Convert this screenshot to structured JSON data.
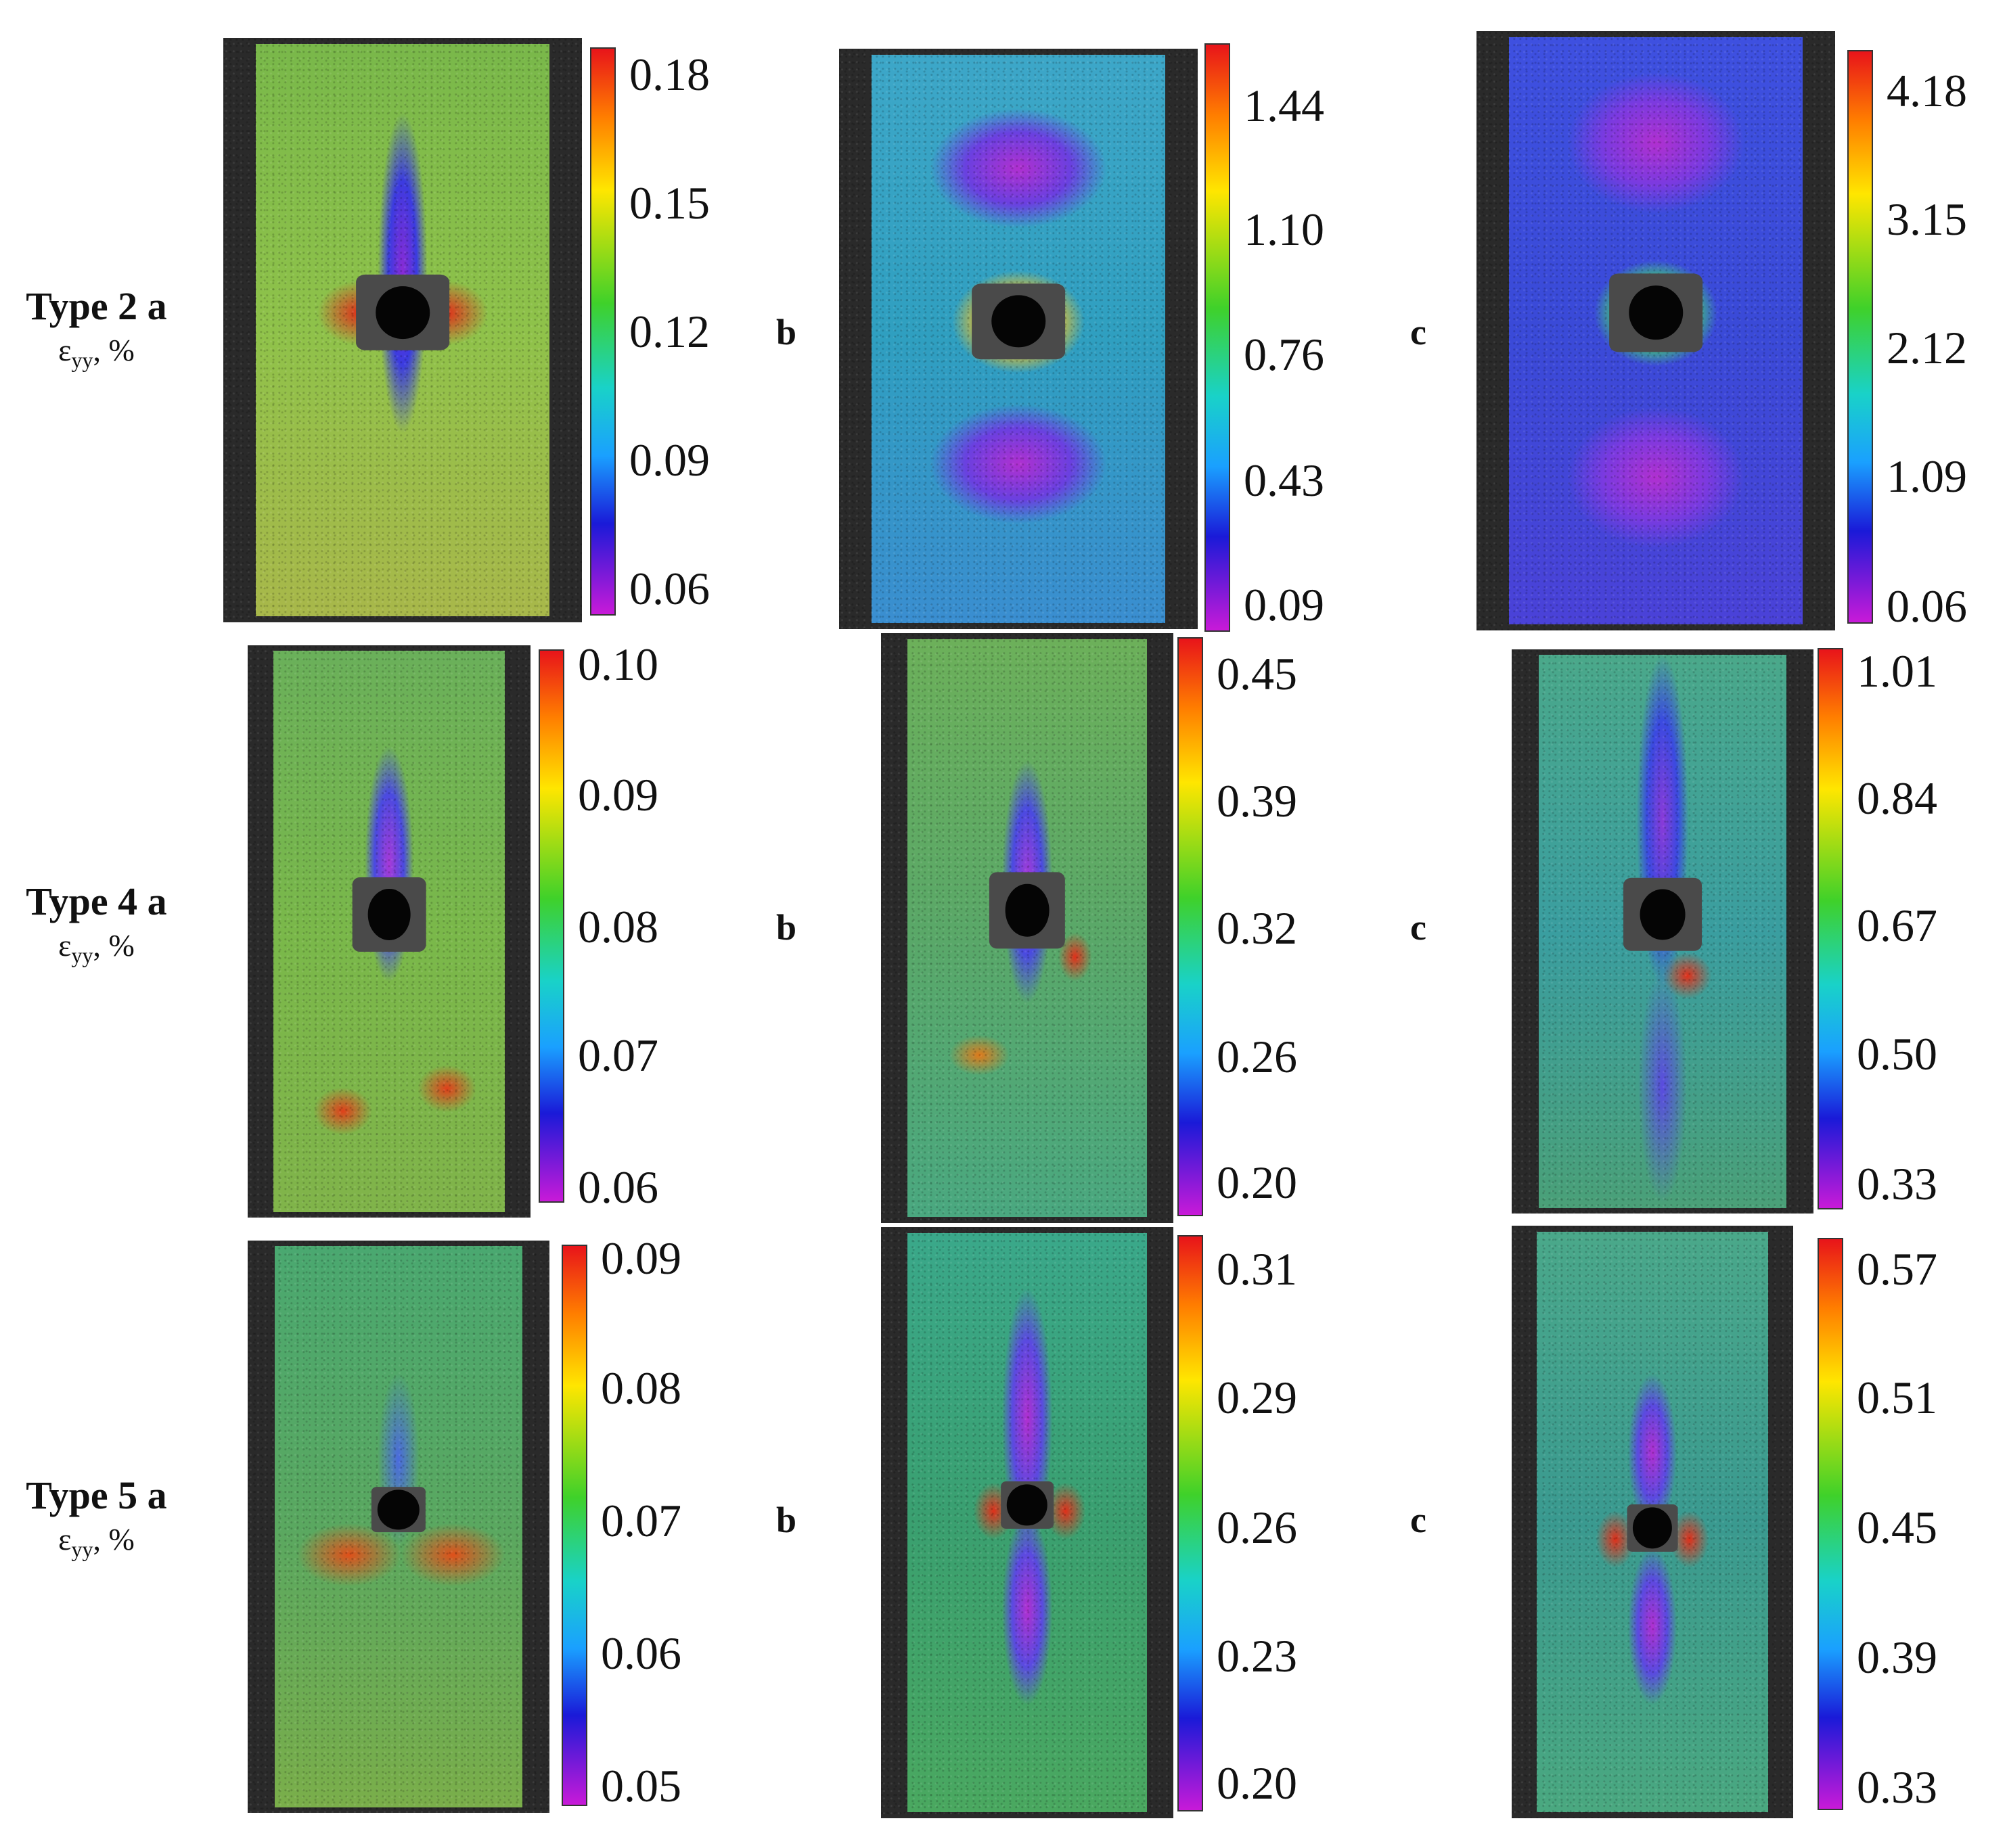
{
  "rows": [
    {
      "title": "Type 2 a",
      "quantity_symbol": "ε",
      "quantity_subscript": "yy",
      "quantity_unit": ", %",
      "panels": [
        {
          "letter": "",
          "scale": [
            "0.18",
            "0.15",
            "0.12",
            "0.09",
            "0.06"
          ],
          "background": "radial-gradient(ellipse 12% 40% at 50% 40%, #8a2bd6 0%, #3b3be0 40%, transparent 70%), radial-gradient(ellipse 20% 8% at 35% 47%, #e0301a 0%, transparent 70%), radial-gradient(ellipse 20% 8% at 65% 47%, #e0301a 0%, transparent 70%), linear-gradient(#79b84a, #8fc24a 50%, #a8b84a)"
        },
        {
          "letter": "b",
          "scale": [
            "1.44",
            "1.10",
            "0.76",
            "0.43",
            "0.09"
          ],
          "background": "radial-gradient(ellipse 40% 14% at 50% 20%, #b030d0 0%, #6a40e0 45%, transparent 75%), radial-gradient(ellipse 40% 14% at 50% 72%, #b030d0 0%, #6a40e0 45%, transparent 75%), radial-gradient(ellipse 30% 12% at 50% 47%, #e03a20 0%, #f0c020 40%, transparent 75%), linear-gradient(#3da7c8, #2f9fc0 50%, #3a8ed0)"
        },
        {
          "letter": "c",
          "scale": [
            "4.18",
            "3.15",
            "2.12",
            "1.09",
            "0.06"
          ],
          "background": "radial-gradient(ellipse 40% 16% at 50% 18%, #b030d0 0%, #7a3ae0 45%, transparent 75%), radial-gradient(ellipse 40% 16% at 50% 75%, #b030d0 0%, #7a3ae0 45%, transparent 75%), radial-gradient(ellipse 28% 12% at 50% 47%, #e03a20 0%, #40d070 45%, transparent 75%), linear-gradient(#3e50e0, #3a4ad8 50%, #4a42d8)"
        }
      ]
    },
    {
      "title": "Type 4 a",
      "quantity_symbol": "ε",
      "quantity_subscript": "yy",
      "quantity_unit": ", %",
      "panels": [
        {
          "letter": "",
          "scale": [
            "0.10",
            "0.09",
            "0.08",
            "0.07",
            "0.06"
          ],
          "background": "radial-gradient(ellipse 14% 28% at 50% 38%, #a83ad8 0%, #4a4ae0 45%, transparent 75%), radial-gradient(ellipse 18% 6% at 30% 82%, #e0401a 0%, transparent 70%), radial-gradient(ellipse 18% 6% at 75% 78%, #e0401a 0%, transparent 70%), linear-gradient(#6ab05a, #7ab84a 50%, #80b44a)"
        },
        {
          "letter": "b",
          "scale": [
            "0.45",
            "0.39",
            "0.32",
            "0.26",
            "0.20"
          ],
          "background": "radial-gradient(ellipse 14% 28% at 50% 42%, #a83ad8 0%, #4a4ae0 45%, transparent 75%), radial-gradient(ellipse 10% 6% at 70% 55%, #e0301a 0%, transparent 70%), radial-gradient(ellipse 18% 5% at 30% 72%, #e07a1a 0%, transparent 70%), linear-gradient(#6cb05a, #5aa868 50%, #4aa880)"
        },
        {
          "letter": "c",
          "scale": [
            "1.01",
            "0.84",
            "0.67",
            "0.50",
            "0.33"
          ],
          "background": "radial-gradient(ellipse 14% 40% at 50% 30%, #8a3ad8 0%, #3a4ae0 45%, transparent 75%), radial-gradient(ellipse 14% 30% at 50% 78%, #5a4ae0 0%, transparent 70%), radial-gradient(ellipse 14% 6% at 60% 58%, #e0301a 0%, transparent 70%), linear-gradient(#4aa88a, #3a9ea0 50%, #4aa078)"
        }
      ]
    },
    {
      "title": "Type 5 a",
      "quantity_symbol": "ε",
      "quantity_subscript": "yy",
      "quantity_unit": ", %",
      "panels": [
        {
          "letter": "",
          "scale": [
            "0.09",
            "0.08",
            "0.07",
            "0.06",
            "0.05"
          ],
          "background": "radial-gradient(ellipse 12% 22% at 50% 38%, #4a6ae0 0%, transparent 70%), radial-gradient(ellipse 30% 8% at 30% 55%, #e0501a 0%, transparent 70%), radial-gradient(ellipse 30% 8% at 72% 55%, #e0501a 0%, transparent 70%), linear-gradient(#4aa870, #5aa860 50%, #7aae4a)"
        },
        {
          "letter": "b",
          "scale": [
            "0.31",
            "0.29",
            "0.26",
            "0.23",
            "0.20"
          ],
          "background": "radial-gradient(ellipse 14% 30% at 50% 32%, #b030d0 0%, #5a4ae0 45%, transparent 75%), radial-gradient(ellipse 14% 22% at 50% 65%, #b030d0 0%, #5a4ae0 45%, transparent 75%), radial-gradient(ellipse 12% 7% at 36% 48%, #e0301a 0%, transparent 70%), radial-gradient(ellipse 12% 7% at 66% 48%, #e0301a 0%, transparent 70%), linear-gradient(#3aa88a, #3aa070 50%, #4aa860)"
        },
        {
          "letter": "c",
          "scale": [
            "0.57",
            "0.51",
            "0.45",
            "0.39",
            "0.33"
          ],
          "background": "radial-gradient(ellipse 14% 18% at 50% 38%, #b030d0 0%, #5a4ae0 45%, transparent 75%), radial-gradient(ellipse 14% 18% at 50% 68%, #b030d0 0%, #5a4ae0 45%, transparent 75%), radial-gradient(ellipse 12% 7% at 34% 53%, #e0301a 0%, transparent 70%), radial-gradient(ellipse 12% 7% at 66% 53%, #e0301a 0%, transparent 70%), linear-gradient(#4aa88a, #3a9a90 50%, #4aa880)"
        }
      ]
    }
  ]
}
